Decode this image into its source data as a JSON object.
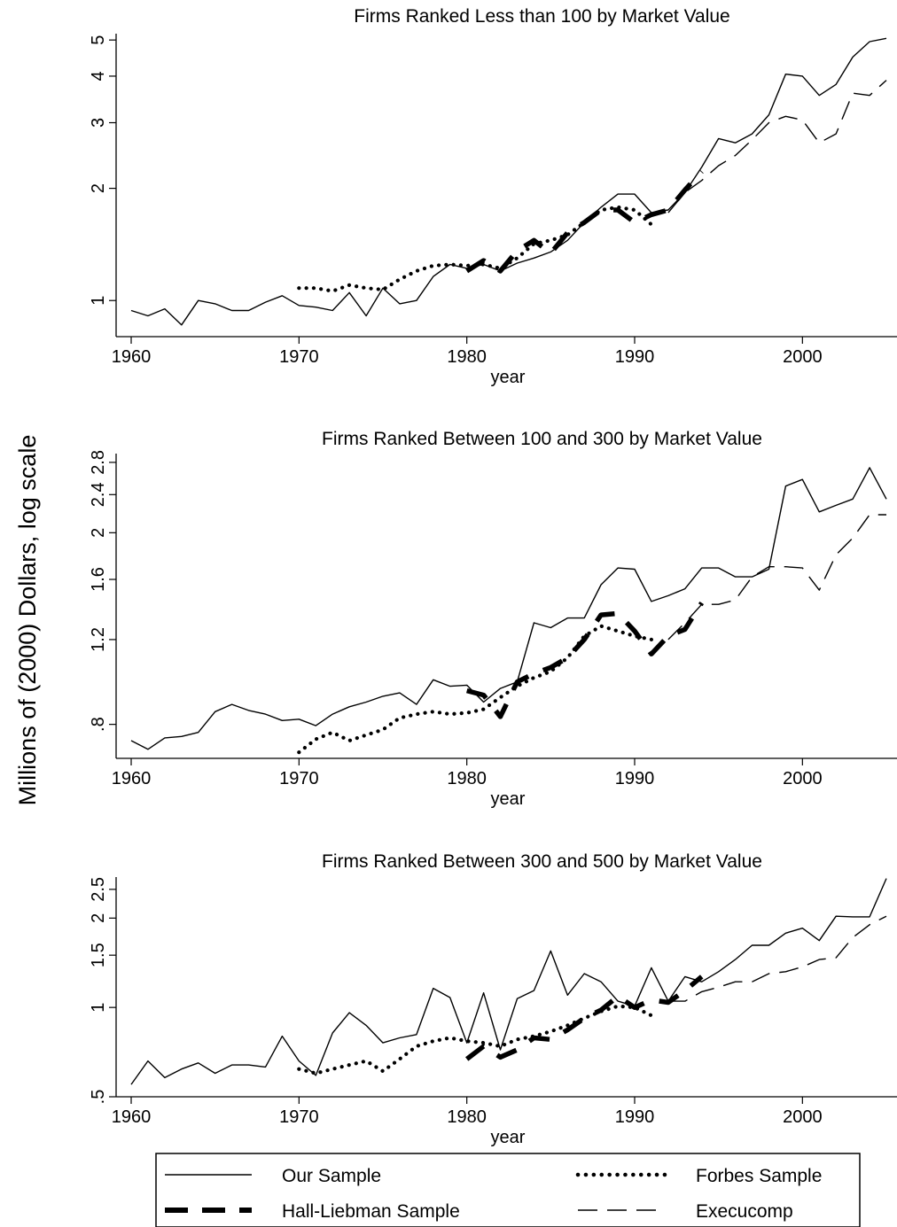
{
  "chart_data": {
    "type": "line",
    "ylabel": "Millions of (2000) Dollars, log scale",
    "y_scale": "log",
    "grid": false,
    "legend": {
      "placement": "bottom",
      "entries": [
        {
          "name": "Our Sample",
          "series": "our",
          "style": "solid thin"
        },
        {
          "name": "Forbes Sample",
          "series": "forbes",
          "style": "dotted"
        },
        {
          "name": "Hall-Liebman Sample",
          "series": "hall",
          "style": "thick dashed"
        },
        {
          "name": "Execucomp",
          "series": "exec",
          "style": "long dash thin"
        }
      ]
    },
    "panels": [
      {
        "title": "Firms Ranked Less than 100 by Market Value",
        "xlabel": "year",
        "xlim": [
          1960,
          2005
        ],
        "xticks": [
          1960,
          1970,
          1980,
          1990,
          2000
        ],
        "ylim": [
          0.8,
          5.2
        ],
        "yticks": [
          1,
          2,
          3,
          4,
          5
        ],
        "ytick_labels": [
          "1",
          "2",
          "3",
          "4",
          "5"
        ],
        "series": {
          "our": {
            "x": [
              1960,
              1961,
              1962,
              1963,
              1964,
              1965,
              1966,
              1967,
              1968,
              1969,
              1970,
              1971,
              1972,
              1973,
              1974,
              1975,
              1976,
              1977,
              1978,
              1979,
              1980,
              1981,
              1982,
              1983,
              1984,
              1985,
              1986,
              1987,
              1988,
              1989,
              1990,
              1991,
              1992,
              1993,
              1994,
              1995,
              1996,
              1997,
              1998,
              1999,
              2000,
              2001,
              2002,
              2003,
              2004,
              2005
            ],
            "y": [
              0.94,
              0.91,
              0.95,
              0.86,
              1.0,
              0.98,
              0.94,
              0.94,
              0.99,
              1.03,
              0.97,
              0.96,
              0.94,
              1.05,
              0.91,
              1.08,
              0.98,
              1.0,
              1.16,
              1.25,
              1.22,
              1.25,
              1.2,
              1.26,
              1.3,
              1.35,
              1.45,
              1.62,
              1.78,
              1.93,
              1.93,
              1.72,
              1.75,
              1.95,
              2.28,
              2.72,
              2.65,
              2.8,
              3.15,
              4.05,
              4.0,
              3.55,
              3.8,
              4.5,
              4.95,
              5.05
            ]
          },
          "forbes": {
            "x": [
              1970,
              1971,
              1972,
              1973,
              1974,
              1975,
              1976,
              1977,
              1978,
              1979,
              1980,
              1981,
              1982,
              1983,
              1984,
              1985,
              1986,
              1987,
              1988,
              1989,
              1990,
              1991
            ],
            "y": [
              1.08,
              1.08,
              1.06,
              1.1,
              1.08,
              1.07,
              1.14,
              1.2,
              1.24,
              1.25,
              1.24,
              1.25,
              1.22,
              1.3,
              1.42,
              1.45,
              1.5,
              1.62,
              1.75,
              1.78,
              1.75,
              1.6
            ]
          },
          "hall": {
            "x": [
              1980,
              1981,
              1982,
              1983,
              1984,
              1985,
              1986,
              1987,
              1988,
              1989,
              1990,
              1991,
              1992,
              1993,
              1994
            ],
            "y": [
              1.2,
              1.28,
              1.2,
              1.36,
              1.45,
              1.34,
              1.52,
              1.62,
              1.75,
              1.75,
              1.62,
              1.7,
              1.75,
              1.98,
              2.22
            ]
          },
          "exec": {
            "x": [
              1992,
              1993,
              1994,
              1995,
              1996,
              1997,
              1998,
              1999,
              2000,
              2001,
              2002,
              2003,
              2004,
              2005
            ],
            "y": [
              1.72,
              1.95,
              2.1,
              2.3,
              2.45,
              2.7,
              3.0,
              3.12,
              3.05,
              2.65,
              2.8,
              3.6,
              3.55,
              3.9
            ]
          }
        }
      },
      {
        "title": "Firms Ranked Between 100 and 300 by Market Value",
        "xlabel": "year",
        "xlim": [
          1960,
          2005
        ],
        "xticks": [
          1960,
          1970,
          1980,
          1990,
          2000
        ],
        "ylim": [
          0.68,
          2.92
        ],
        "yticks": [
          0.8,
          1.2,
          1.6,
          2.0,
          2.4,
          2.8
        ],
        "ytick_labels": [
          ".8",
          "1.2",
          "1.6",
          "2",
          "2.4",
          "2.8"
        ],
        "series": {
          "our": {
            "x": [
              1960,
              1961,
              1962,
              1963,
              1964,
              1965,
              1966,
              1967,
              1968,
              1969,
              1970,
              1971,
              1972,
              1973,
              1974,
              1975,
              1976,
              1977,
              1978,
              1979,
              1980,
              1981,
              1982,
              1983,
              1984,
              1985,
              1986,
              1987,
              1988,
              1989,
              1990,
              1991,
              1992,
              1993,
              1994,
              1995,
              1996,
              1997,
              1998,
              1999,
              2000,
              2001,
              2002,
              2003,
              2004,
              2005
            ],
            "y": [
              0.74,
              0.71,
              0.75,
              0.755,
              0.77,
              0.85,
              0.88,
              0.855,
              0.84,
              0.815,
              0.82,
              0.795,
              0.84,
              0.87,
              0.89,
              0.915,
              0.93,
              0.88,
              0.99,
              0.96,
              0.965,
              0.89,
              0.95,
              0.98,
              1.3,
              1.27,
              1.33,
              1.33,
              1.56,
              1.69,
              1.68,
              1.44,
              1.48,
              1.53,
              1.69,
              1.69,
              1.62,
              1.62,
              1.68,
              2.5,
              2.58,
              2.21,
              2.28,
              2.35,
              2.73,
              2.35
            ]
          },
          "forbes": {
            "x": [
              1970,
              1971,
              1972,
              1973,
              1974,
              1975,
              1976,
              1977,
              1978,
              1979,
              1980,
              1981,
              1982,
              1983,
              1984,
              1985,
              1986,
              1987,
              1988,
              1989,
              1990,
              1991
            ],
            "y": [
              0.7,
              0.745,
              0.77,
              0.74,
              0.76,
              0.78,
              0.825,
              0.84,
              0.85,
              0.84,
              0.845,
              0.86,
              0.91,
              0.96,
              1.0,
              1.03,
              1.1,
              1.22,
              1.28,
              1.25,
              1.22,
              1.2
            ]
          },
          "hall": {
            "x": [
              1980,
              1981,
              1982,
              1983,
              1984,
              1985,
              1986,
              1987,
              1988,
              1989,
              1990,
              1991,
              1992,
              1993,
              1994
            ],
            "y": [
              0.94,
              0.92,
              0.83,
              0.98,
              1.02,
              1.05,
              1.1,
              1.2,
              1.35,
              1.36,
              1.25,
              1.12,
              1.22,
              1.26,
              1.43
            ]
          },
          "exec": {
            "x": [
              1992,
              1993,
              1994,
              1995,
              1996,
              1997,
              1998,
              1999,
              2000,
              2001,
              2002,
              2003,
              2004,
              2005
            ],
            "y": [
              1.2,
              1.3,
              1.42,
              1.42,
              1.45,
              1.62,
              1.7,
              1.7,
              1.69,
              1.52,
              1.8,
              1.95,
              2.18,
              2.18
            ]
          }
        }
      },
      {
        "title": "Firms Ranked Between 300 and 500 by Market Value",
        "xlabel": "year",
        "xlim": [
          1960,
          2005
        ],
        "xticks": [
          1960,
          1970,
          1980,
          1990,
          2000
        ],
        "ylim": [
          0.5,
          2.75
        ],
        "yticks": [
          0.5,
          1.0,
          1.5,
          2.0,
          2.5
        ],
        "ytick_labels": [
          ".5",
          "1",
          "1.5",
          "2",
          "2.5"
        ],
        "series": {
          "our": {
            "x": [
              1960,
              1961,
              1962,
              1963,
              1964,
              1965,
              1966,
              1967,
              1968,
              1969,
              1970,
              1971,
              1972,
              1973,
              1974,
              1975,
              1976,
              1977,
              1978,
              1979,
              1980,
              1981,
              1982,
              1983,
              1984,
              1985,
              1986,
              1987,
              1988,
              1989,
              1990,
              1991,
              1992,
              1993,
              1994,
              1995,
              1996,
              1997,
              1998,
              1999,
              2000,
              2001,
              2002,
              2003,
              2004,
              2005
            ],
            "y": [
              0.55,
              0.66,
              0.58,
              0.62,
              0.65,
              0.6,
              0.64,
              0.64,
              0.63,
              0.8,
              0.66,
              0.59,
              0.82,
              0.96,
              0.87,
              0.76,
              0.79,
              0.81,
              1.16,
              1.08,
              0.76,
              1.12,
              0.72,
              1.07,
              1.14,
              1.55,
              1.1,
              1.3,
              1.22,
              1.05,
              1.01,
              1.36,
              1.05,
              1.27,
              1.22,
              1.32,
              1.45,
              1.62,
              1.62,
              1.78,
              1.85,
              1.68,
              2.03,
              2.02,
              2.02,
              2.72
            ]
          },
          "forbes": {
            "x": [
              1970,
              1971,
              1972,
              1973,
              1974,
              1975,
              1976,
              1977,
              1978,
              1979,
              1980,
              1981,
              1982,
              1983,
              1984,
              1985,
              1986,
              1987,
              1988,
              1989,
              1990,
              1991
            ],
            "y": [
              0.62,
              0.6,
              0.62,
              0.64,
              0.66,
              0.61,
              0.67,
              0.74,
              0.77,
              0.79,
              0.77,
              0.76,
              0.74,
              0.78,
              0.8,
              0.83,
              0.87,
              0.92,
              0.97,
              1.01,
              1.0,
              0.94
            ]
          },
          "hall": {
            "x": [
              1980,
              1981,
              1982,
              1983,
              1984,
              1985,
              1986,
              1987,
              1988,
              1989,
              1990,
              1991,
              1992,
              1993,
              1994
            ],
            "y": [
              0.67,
              0.74,
              0.68,
              0.72,
              0.79,
              0.78,
              0.84,
              0.92,
              0.98,
              1.09,
              1.0,
              1.06,
              1.04,
              1.14,
              1.27
            ]
          },
          "exec": {
            "x": [
              1992,
              1993,
              1994,
              1995,
              1996,
              1997,
              1998,
              1999,
              2000,
              2001,
              2002,
              2003,
              2004,
              2005
            ],
            "y": [
              1.05,
              1.05,
              1.13,
              1.17,
              1.22,
              1.22,
              1.3,
              1.32,
              1.37,
              1.45,
              1.47,
              1.72,
              1.9,
              2.03
            ]
          }
        }
      }
    ]
  }
}
